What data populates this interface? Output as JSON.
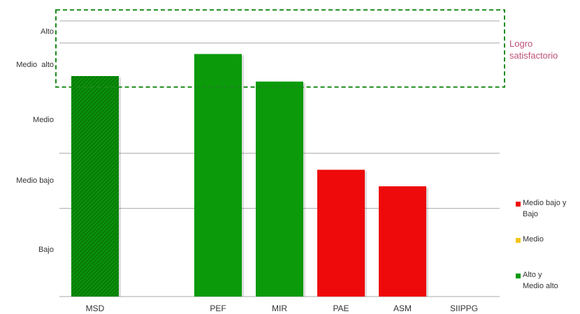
{
  "chart_data": {
    "type": "bar",
    "categories": [
      "MSD",
      null,
      "PEF",
      "MIR",
      "PAE",
      "ASM",
      "SIIPPG"
    ],
    "values": [
      80,
      null,
      88,
      78,
      46,
      40,
      null
    ],
    "colors": [
      "#0a8f0a",
      null,
      "#0a9a0a",
      "#0a9a0a",
      "#ee0a0a",
      "#ee0a0a",
      null
    ],
    "hatched": [
      true,
      false,
      false,
      false,
      false,
      false,
      false
    ],
    "ylim": [
      0,
      100
    ],
    "yticks": [
      {
        "value": 17,
        "label": "Bajo"
      },
      {
        "value": 42,
        "label": "Medio bajo"
      },
      {
        "value": 64,
        "label": "Medio"
      },
      {
        "value": 84,
        "label": "Medio  alto"
      },
      {
        "value": 96,
        "label": "Alto"
      }
    ],
    "grid_lines": [
      0,
      32,
      52,
      92,
      100
    ],
    "annotation": {
      "text": "Logro\nsatisfactorio",
      "range": [
        76,
        104
      ],
      "color": "#1a8a1a",
      "text_color": "#c0507a"
    },
    "legend": [
      {
        "name": "Medio bajo y\nBajo",
        "color": "#ee0a0a"
      },
      {
        "name": "Medio",
        "color": "#f5c518"
      },
      {
        "name": "Alto y\nMedio alto",
        "color": "#0a9a0a"
      }
    ]
  }
}
